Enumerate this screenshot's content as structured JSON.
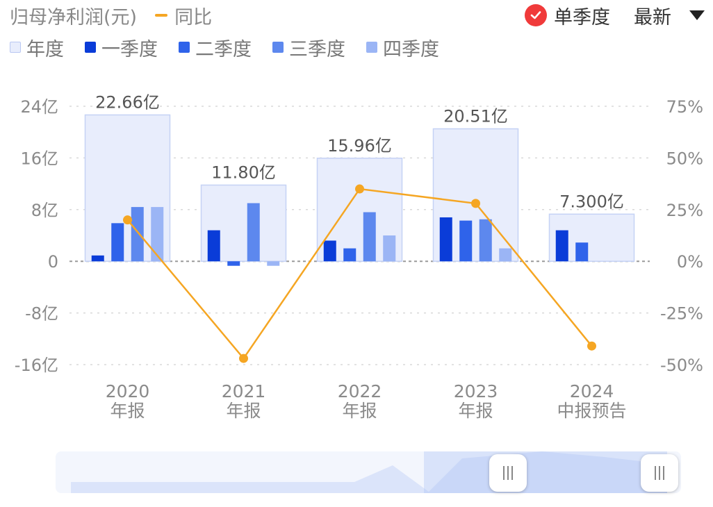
{
  "header": {
    "title": "归母净利润(元)",
    "line_legend": "同比",
    "toggle_label": "单季度",
    "sort_label": "最新"
  },
  "legend": [
    {
      "label": "年度",
      "color": "#e8edfc",
      "border": "#b9c7f2"
    },
    {
      "label": "一季度",
      "color": "#0a3cd8",
      "border": "#0a3cd8"
    },
    {
      "label": "二季度",
      "color": "#2f63ea",
      "border": "#2f63ea"
    },
    {
      "label": "三季度",
      "color": "#5d88ee",
      "border": "#5d88ee"
    },
    {
      "label": "四季度",
      "color": "#9bb5f5",
      "border": "#9bb5f5"
    }
  ],
  "colors": {
    "line": "#f5a623",
    "annual_fill": "#e8edfc",
    "annual_border": "#c5d2f5",
    "grid": "#d8d8d8"
  },
  "chart_data": {
    "type": "bar",
    "categories": [
      [
        "2020",
        "年报"
      ],
      [
        "2021",
        "年报"
      ],
      [
        "2022",
        "年报"
      ],
      [
        "2023",
        "年报"
      ],
      [
        "2024",
        "中报预告"
      ]
    ],
    "annual": {
      "name": "年度",
      "values": [
        22.66,
        11.8,
        15.96,
        20.51,
        7.3
      ],
      "labels": [
        "22.66亿",
        "11.80亿",
        "15.96亿",
        "20.51亿",
        "7.300亿"
      ]
    },
    "series": [
      {
        "name": "一季度",
        "values": [
          0.9,
          4.8,
          3.2,
          6.8,
          4.8
        ]
      },
      {
        "name": "二季度",
        "values": [
          5.9,
          -0.7,
          2.0,
          6.3,
          2.9
        ]
      },
      {
        "name": "三季度",
        "values": [
          8.4,
          9.0,
          7.6,
          6.5,
          null
        ]
      },
      {
        "name": "四季度",
        "values": [
          8.4,
          -0.7,
          4.0,
          2.0,
          null
        ]
      }
    ],
    "yoy": {
      "name": "同比",
      "values": [
        20,
        -47,
        35,
        28,
        -41
      ]
    },
    "y_left": {
      "min": -16,
      "max": 24,
      "ticks": [
        24,
        16,
        8,
        0,
        -8,
        -16
      ],
      "tick_labels": [
        "24亿",
        "16亿",
        "8亿",
        "0",
        "-8亿",
        "-16亿"
      ]
    },
    "y_right": {
      "min": -50,
      "max": 75,
      "ticks": [
        75,
        50,
        25,
        0,
        -25,
        -50
      ],
      "tick_labels": [
        "75%",
        "50%",
        "25%",
        "0%",
        "-25%",
        "-50%"
      ]
    },
    "grid": true
  }
}
